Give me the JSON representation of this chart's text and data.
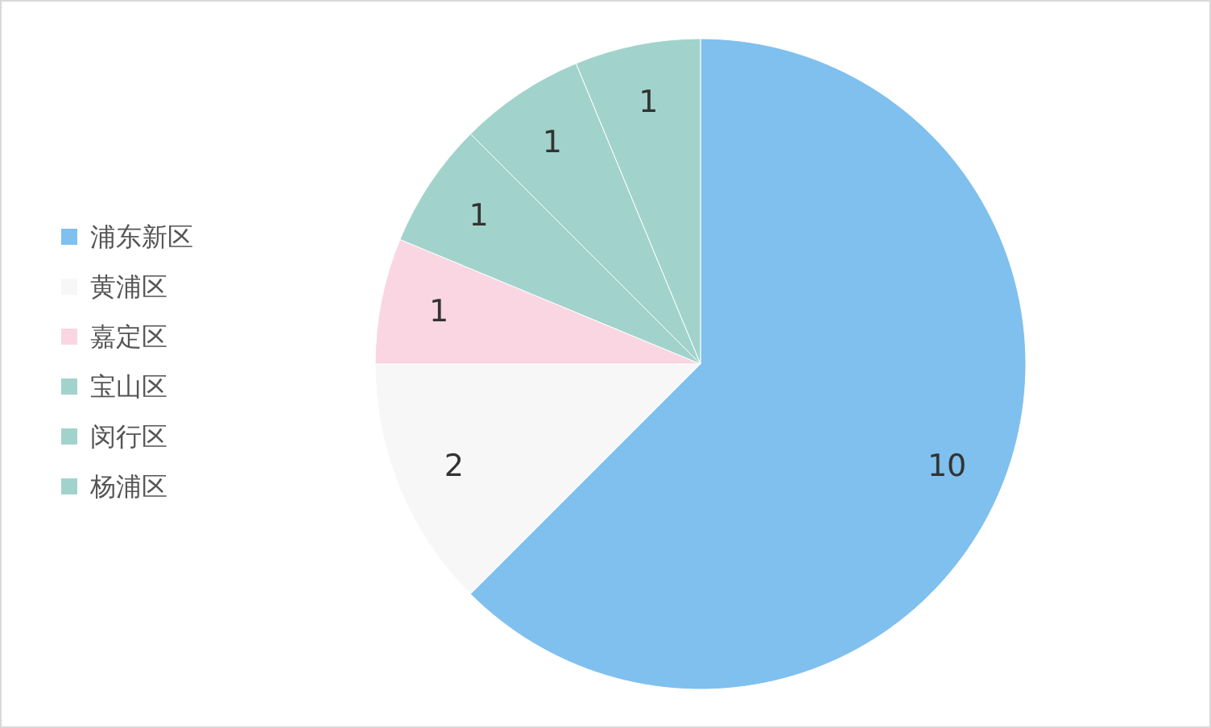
{
  "chart_data": {
    "type": "pie",
    "categories": [
      "浦东新区",
      "黄浦区",
      "嘉定区",
      "宝山区",
      "闵行区",
      "杨浦区"
    ],
    "values": [
      10,
      2,
      1,
      1,
      1,
      1
    ],
    "colors": [
      "#7fc0ee",
      "#f7f7f7",
      "#f9d6e2",
      "#a1d3cc",
      "#a1d3cc",
      "#a1d3cc"
    ],
    "data_labels": true,
    "legend": "left"
  }
}
